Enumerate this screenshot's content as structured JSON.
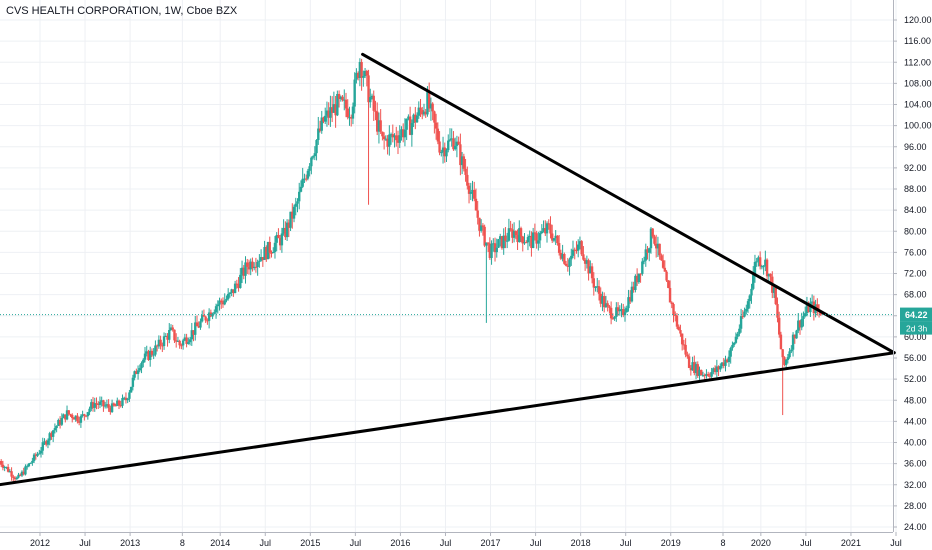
{
  "chart_data": {
    "type": "candlestick",
    "title": "CVS HEALTH CORPORATION, 1W, Cboe BZX",
    "y_axis": {
      "position": "right",
      "ylim": [
        22.5,
        121.5
      ],
      "ticks": [
        "120.00",
        "116.00",
        "112.00",
        "108.00",
        "104.00",
        "100.00",
        "96.00",
        "92.00",
        "88.00",
        "84.00",
        "80.00",
        "76.00",
        "72.00",
        "68.00",
        "64.00",
        "60.00",
        "56.00",
        "52.00",
        "48.00",
        "44.00",
        "40.00",
        "36.00",
        "32.00",
        "28.00",
        "24.00"
      ]
    },
    "x_axis": {
      "ticks": [
        {
          "t": 2012.0,
          "label": "2012"
        },
        {
          "t": 2012.5,
          "label": "Jul"
        },
        {
          "t": 2013.0,
          "label": "2013"
        },
        {
          "t": 2013.58,
          "label": "8"
        },
        {
          "t": 2014.0,
          "label": "2014"
        },
        {
          "t": 2014.5,
          "label": "Jul"
        },
        {
          "t": 2015.0,
          "label": "2015"
        },
        {
          "t": 2015.5,
          "label": "Jul"
        },
        {
          "t": 2016.0,
          "label": "2016"
        },
        {
          "t": 2016.5,
          "label": "Jul"
        },
        {
          "t": 2017.0,
          "label": "2017"
        },
        {
          "t": 2017.5,
          "label": "Jul"
        },
        {
          "t": 2018.0,
          "label": "2018"
        },
        {
          "t": 2018.5,
          "label": "Jul"
        },
        {
          "t": 2019.0,
          "label": "2019"
        },
        {
          "t": 2019.58,
          "label": "8"
        },
        {
          "t": 2020.0,
          "label": "2020"
        },
        {
          "t": 2020.5,
          "label": "Jul"
        },
        {
          "t": 2021.0,
          "label": "2021"
        },
        {
          "t": 2021.5,
          "label": "Jul"
        }
      ]
    },
    "last_price": {
      "value": 64.22,
      "label": "64.22",
      "countdown": "2d 3h"
    },
    "colors": {
      "up": "#26a69a",
      "down": "#ef5350",
      "trendline": "#000000",
      "price_line": "#26a69a"
    },
    "price_path": [
      [
        2011.55,
        36.5
      ],
      [
        2011.75,
        33.0
      ],
      [
        2012.0,
        38.5
      ],
      [
        2012.15,
        42.5
      ],
      [
        2012.3,
        45.5
      ],
      [
        2012.45,
        44.5
      ],
      [
        2012.6,
        47.5
      ],
      [
        2012.8,
        46.5
      ],
      [
        2012.95,
        48.0
      ],
      [
        2013.1,
        55.0
      ],
      [
        2013.3,
        58.0
      ],
      [
        2013.45,
        61.0
      ],
      [
        2013.55,
        58.5
      ],
      [
        2013.75,
        62.0
      ],
      [
        2013.95,
        66.0
      ],
      [
        2014.1,
        67.5
      ],
      [
        2014.3,
        73.5
      ],
      [
        2014.5,
        76.0
      ],
      [
        2014.7,
        79.0
      ],
      [
        2014.85,
        85.0
      ],
      [
        2015.0,
        94.0
      ],
      [
        2015.15,
        101.0
      ],
      [
        2015.3,
        104.0
      ],
      [
        2015.45,
        103.0
      ],
      [
        2015.55,
        112.5
      ],
      [
        2015.65,
        106.0
      ],
      [
        2015.8,
        97.0
      ],
      [
        2015.95,
        98.0
      ],
      [
        2016.1,
        100.0
      ],
      [
        2016.3,
        104.5
      ],
      [
        2016.45,
        95.5
      ],
      [
        2016.6,
        97.5
      ],
      [
        2016.75,
        89.5
      ],
      [
        2016.9,
        80.0
      ],
      [
        2017.0,
        76.0
      ],
      [
        2017.25,
        80.0
      ],
      [
        2017.45,
        78.0
      ],
      [
        2017.65,
        80.5
      ],
      [
        2017.85,
        74.0
      ],
      [
        2018.0,
        77.5
      ],
      [
        2018.15,
        70.0
      ],
      [
        2018.3,
        65.0
      ],
      [
        2018.45,
        64.0
      ],
      [
        2018.6,
        70.0
      ],
      [
        2018.8,
        80.0
      ],
      [
        2018.95,
        70.0
      ],
      [
        2019.05,
        63.5
      ],
      [
        2019.2,
        55.0
      ],
      [
        2019.35,
        53.0
      ],
      [
        2019.5,
        53.5
      ],
      [
        2019.65,
        56.5
      ],
      [
        2019.85,
        66.0
      ],
      [
        2019.95,
        75.0
      ],
      [
        2020.05,
        74.0
      ],
      [
        2020.15,
        68.0
      ],
      [
        2020.25,
        54.0
      ],
      [
        2020.4,
        62.0
      ],
      [
        2020.55,
        66.0
      ],
      [
        2020.68,
        64.22
      ]
    ],
    "trendlines": [
      {
        "name": "descending-resistance",
        "points": [
          [
            2015.58,
            113.5
          ],
          [
            2021.48,
            57.0
          ]
        ]
      },
      {
        "name": "ascending-support",
        "points": [
          [
            2011.55,
            32.0
          ],
          [
            2021.48,
            57.0
          ]
        ]
      }
    ],
    "grid": true
  }
}
